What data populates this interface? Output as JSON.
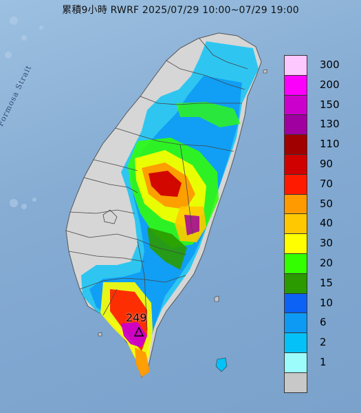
{
  "title": "累積9小時 RWRF 2025/07/29 10:00~07/29 19:00",
  "sea_label": "Formosa Strait",
  "max_value": "249",
  "legend": {
    "levels": [
      {
        "label": "300",
        "color": "#fdc8fd"
      },
      {
        "label": "200",
        "color": "#fb00fb"
      },
      {
        "label": "150",
        "color": "#cc00cc"
      },
      {
        "label": "130",
        "color": "#a000a0"
      },
      {
        "label": "110",
        "color": "#a00000"
      },
      {
        "label": "90",
        "color": "#d00000"
      },
      {
        "label": "70",
        "color": "#ff1a00"
      },
      {
        "label": "50",
        "color": "#ff9a00"
      },
      {
        "label": "40",
        "color": "#ffc800"
      },
      {
        "label": "30",
        "color": "#ffff00"
      },
      {
        "label": "20",
        "color": "#33ff00"
      },
      {
        "label": "15",
        "color": "#2a9a00"
      },
      {
        "label": "10",
        "color": "#0b62f5"
      },
      {
        "label": "6",
        "color": "#0d9af5"
      },
      {
        "label": "2",
        "color": "#04c2f7"
      },
      {
        "label": "1",
        "color": "#9cfcfc"
      },
      {
        "label": "",
        "color": "#c8c8c8"
      }
    ]
  },
  "colors": {
    "sea": "#86acd3",
    "land_no_rain": "#d6d6d6",
    "county_border": "#444444"
  }
}
